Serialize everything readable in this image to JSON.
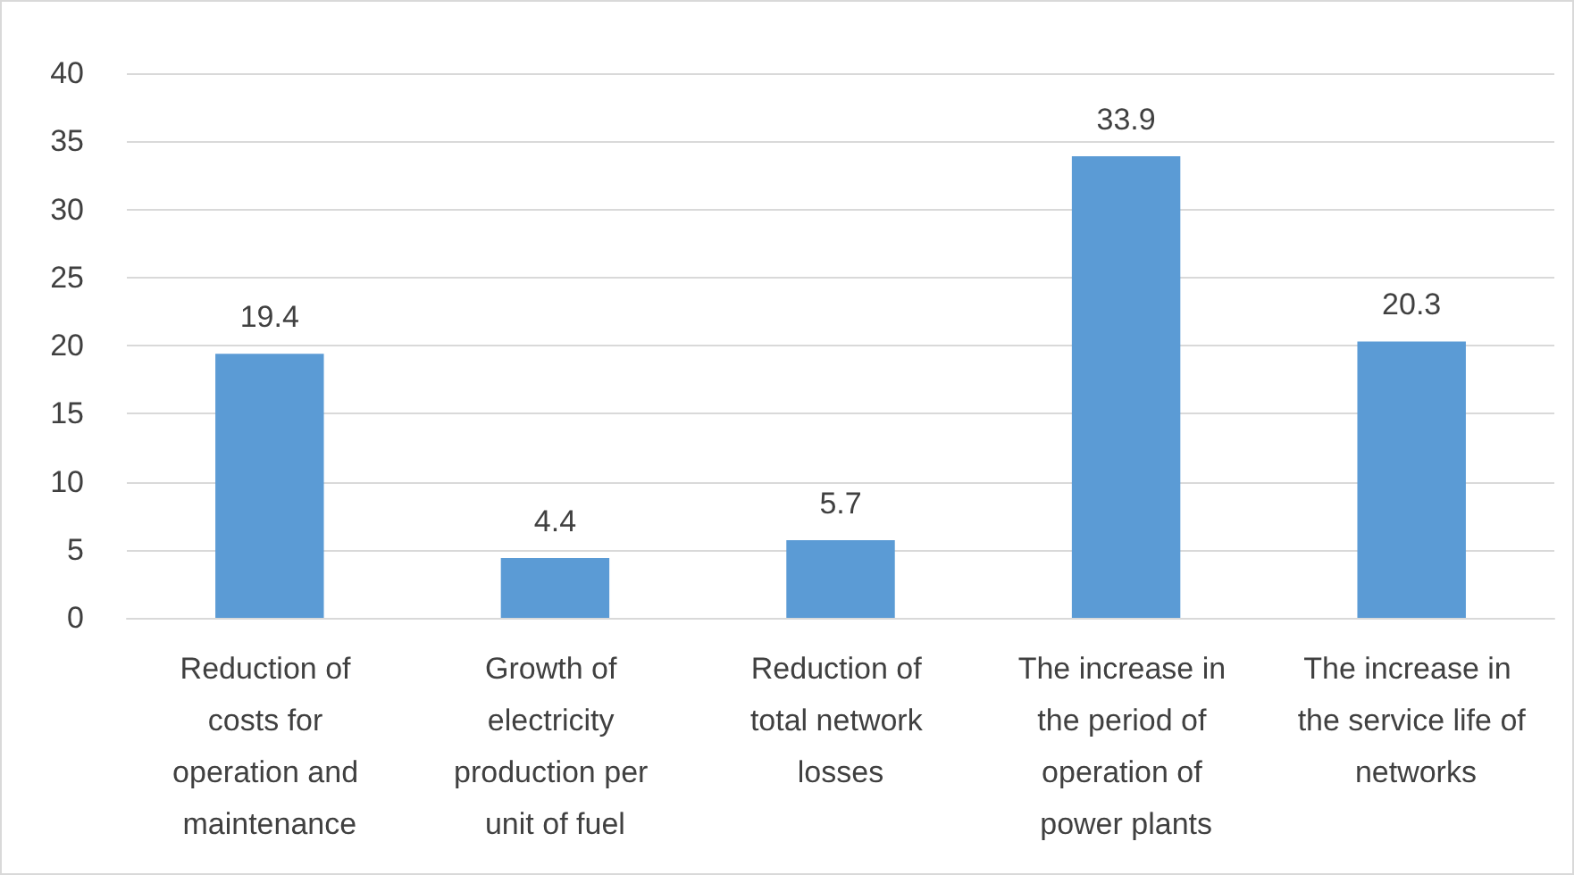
{
  "chart_data": {
    "type": "bar",
    "categories": [
      "Reduction of costs for operation and maintenance",
      "Growth of electricity production per unit of fuel",
      "Reduction of total network losses",
      "The increase in the period of operation of power plants",
      "The increase in the service life of networks"
    ],
    "values": [
      19.4,
      4.4,
      5.7,
      33.9,
      20.3
    ],
    "color": "#5b9bd5",
    "ylim": [
      0,
      40
    ],
    "yticks": [
      0,
      5,
      10,
      15,
      20,
      25,
      30,
      35,
      40
    ],
    "grid": "y",
    "data_labels": true
  }
}
